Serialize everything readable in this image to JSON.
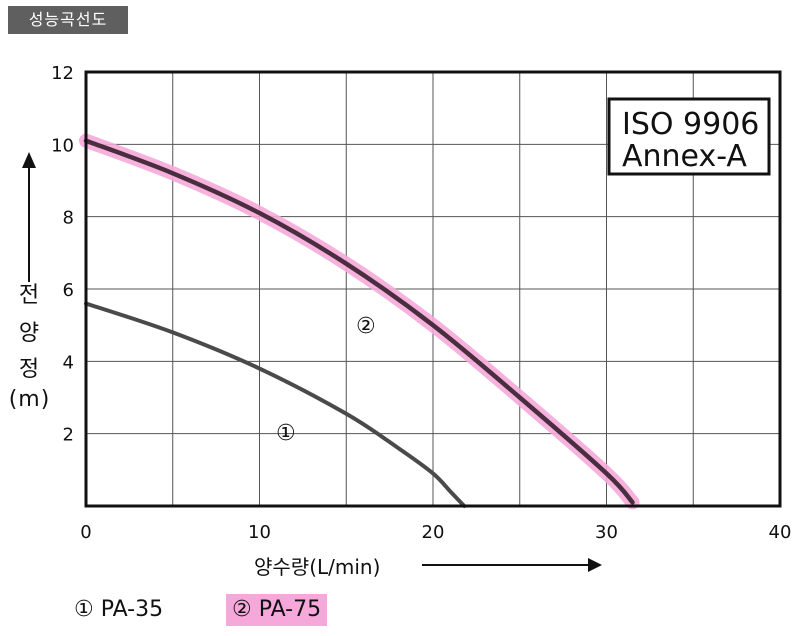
{
  "header": {
    "tag_label": "성능곡선도"
  },
  "standard_box": {
    "line1": "ISO 9906",
    "line2": "Annex-A"
  },
  "legend": [
    {
      "label": "① PA-35",
      "highlight": false
    },
    {
      "label": "② PA-75",
      "highlight": true,
      "highlight_color": "#f5a8d9"
    }
  ],
  "colors": {
    "curve1": "#4a4a4a",
    "curve2": "#4a2e40",
    "curve2_halo": "#f5a8d9"
  },
  "chart_data": {
    "type": "line",
    "xlabel": "양수량(L/min)",
    "ylabel_chars": [
      "전",
      "양",
      "정",
      "(",
      "m",
      ")"
    ],
    "xlim": [
      0,
      40
    ],
    "ylim": [
      0,
      12
    ],
    "xticks": [
      0,
      10,
      20,
      30,
      40
    ],
    "yticks": [
      2,
      4,
      6,
      8,
      10,
      12
    ],
    "x_grid_step": 5,
    "y_grid_step": 2,
    "grid": true,
    "series": [
      {
        "name": "① PA-35",
        "marker": "①",
        "x": [
          0,
          5,
          10,
          15,
          18,
          20,
          21,
          21.8
        ],
        "y": [
          5.6,
          4.8,
          3.8,
          2.55,
          1.6,
          0.9,
          0.4,
          0
        ]
      },
      {
        "name": "② PA-75",
        "marker": "②",
        "x": [
          0,
          5,
          10,
          15,
          20,
          25,
          30,
          31.5
        ],
        "y": [
          10.1,
          9.2,
          8.1,
          6.7,
          5.0,
          3.0,
          0.9,
          0.1
        ]
      }
    ]
  }
}
